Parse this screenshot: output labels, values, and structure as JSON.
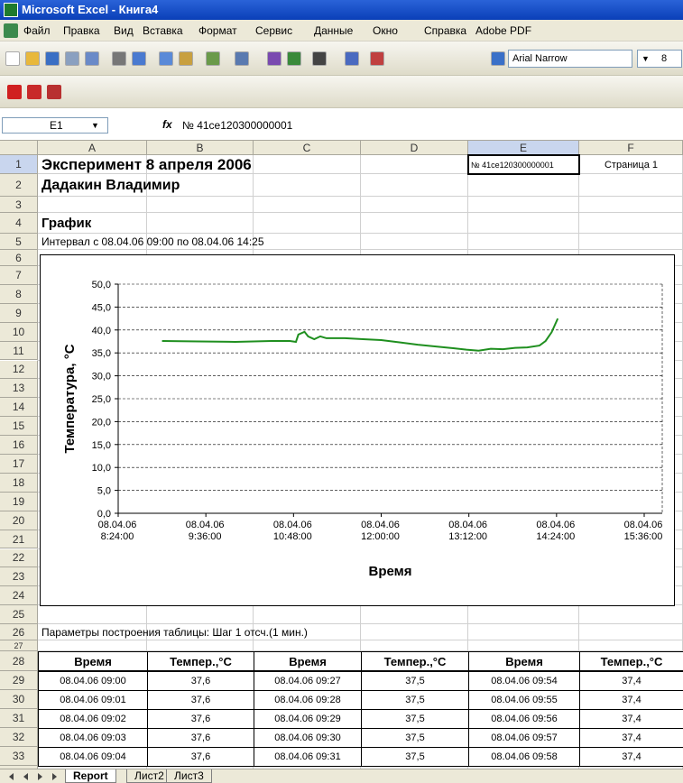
{
  "window": {
    "title": "Microsoft Excel - Книга4"
  },
  "menu": [
    "Файл",
    "Правка",
    "Вид",
    "Вставка",
    "Формат",
    "Сервис",
    "Данные",
    "Окно",
    "Справка",
    "Adobe PDF"
  ],
  "toolbar": {
    "font": "Arial Narrow",
    "size": "8"
  },
  "formula_bar": {
    "name_box": "E1",
    "fx_label": "fx",
    "formula": "№ 41ce120300000001"
  },
  "columns": [
    "A",
    "B",
    "C",
    "D",
    "E",
    "F"
  ],
  "rows": [
    1,
    2,
    3,
    4,
    5,
    6,
    7,
    8,
    9,
    10,
    11,
    12,
    13,
    14,
    15,
    16,
    17,
    18,
    19,
    20,
    21,
    22,
    23,
    24,
    25,
    26,
    27,
    28,
    29,
    30,
    31,
    32,
    33
  ],
  "cells": {
    "A1": "Эксперимент 8 апреля 2006",
    "E1": "№ 41ce120300000001",
    "F1": "Страница 1",
    "A2": "Дадакин Владимир",
    "A4": "График",
    "A5": "Интервал с 08.04.06 09:00 по 08.04.06 14:25",
    "A26": "Параметры построения таблицы: Шаг 1 отсч.(1 мин.)"
  },
  "table": {
    "header": [
      "Время",
      "Темпер.,°C",
      "Время",
      "Темпер.,°C",
      "Время",
      "Темпер.,°C"
    ],
    "rows": [
      [
        "08.04.06 09:00",
        "37,6",
        "08.04.06 09:27",
        "37,5",
        "08.04.06 09:54",
        "37,4"
      ],
      [
        "08.04.06 09:01",
        "37,6",
        "08.04.06 09:28",
        "37,5",
        "08.04.06 09:55",
        "37,4"
      ],
      [
        "08.04.06 09:02",
        "37,6",
        "08.04.06 09:29",
        "37,5",
        "08.04.06 09:56",
        "37,4"
      ],
      [
        "08.04.06 09:03",
        "37,6",
        "08.04.06 09:30",
        "37,5",
        "08.04.06 09:57",
        "37,4"
      ],
      [
        "08.04.06 09:04",
        "37,6",
        "08.04.06 09:31",
        "37,5",
        "08.04.06 09:58",
        "37,4"
      ]
    ]
  },
  "chart_data": {
    "type": "line",
    "x_label": "Время",
    "y_label": "Температура, °С",
    "color": "#1f8f1f",
    "grid": true,
    "x": [
      "2006-04-08T09:00:00",
      "2006-04-08T09:30:00",
      "2006-04-08T10:00:00",
      "2006-04-08T10:30:00",
      "2006-04-08T10:45:00",
      "2006-04-08T10:50:00",
      "2006-04-08T10:52:00",
      "2006-04-08T10:57:00",
      "2006-04-08T11:00:00",
      "2006-04-08T11:05:00",
      "2006-04-08T11:10:00",
      "2006-04-08T11:15:00",
      "2006-04-08T11:30:00",
      "2006-04-08T11:45:00",
      "2006-04-08T12:00:00",
      "2006-04-08T12:15:00",
      "2006-04-08T12:30:00",
      "2006-04-08T12:45:00",
      "2006-04-08T13:00:00",
      "2006-04-08T13:10:00",
      "2006-04-08T13:20:00",
      "2006-04-08T13:30:00",
      "2006-04-08T13:40:00",
      "2006-04-08T13:50:00",
      "2006-04-08T14:00:00",
      "2006-04-08T14:10:00",
      "2006-04-08T14:15:00",
      "2006-04-08T14:20:00",
      "2006-04-08T14:25:00"
    ],
    "values": [
      37.6,
      37.5,
      37.4,
      37.6,
      37.6,
      37.4,
      39.0,
      39.6,
      38.6,
      38.0,
      38.6,
      38.2,
      38.2,
      38.0,
      37.8,
      37.3,
      36.8,
      36.4,
      36.0,
      35.7,
      35.5,
      35.9,
      35.8,
      36.1,
      36.2,
      36.6,
      37.6,
      39.5,
      42.5
    ],
    "xlim": [
      "2006-04-08T08:24:00",
      "2006-04-08T15:36:00"
    ],
    "xticks": [
      {
        "value": "2006-04-08T08:24:00",
        "label": "08.04.06\n8:24:00"
      },
      {
        "value": "2006-04-08T09:36:00",
        "label": "08.04.06\n9:36:00"
      },
      {
        "value": "2006-04-08T10:48:00",
        "label": "08.04.06\n10:48:00"
      },
      {
        "value": "2006-04-08T12:00:00",
        "label": "08.04.06\n12:00:00"
      },
      {
        "value": "2006-04-08T13:12:00",
        "label": "08.04.06\n13:12:00"
      },
      {
        "value": "2006-04-08T14:24:00",
        "label": "08.04.06\n14:24:00"
      },
      {
        "value": "2006-04-08T15:36:00",
        "label": "08.04.06\n15:36:00"
      }
    ],
    "ylim": [
      0,
      50
    ],
    "yticks": [
      {
        "value": 0,
        "label": "0,0"
      },
      {
        "value": 5,
        "label": "5,0"
      },
      {
        "value": 10,
        "label": "10,0"
      },
      {
        "value": 15,
        "label": "15,0"
      },
      {
        "value": 20,
        "label": "20,0"
      },
      {
        "value": 25,
        "label": "25,0"
      },
      {
        "value": 30,
        "label": "30,0"
      },
      {
        "value": 35,
        "label": "35,0"
      },
      {
        "value": 40,
        "label": "40,0"
      },
      {
        "value": 45,
        "label": "45,0"
      },
      {
        "value": 50,
        "label": "50,0"
      }
    ]
  },
  "sheet_tabs": [
    "Report",
    "Лист2",
    "Лист3"
  ]
}
